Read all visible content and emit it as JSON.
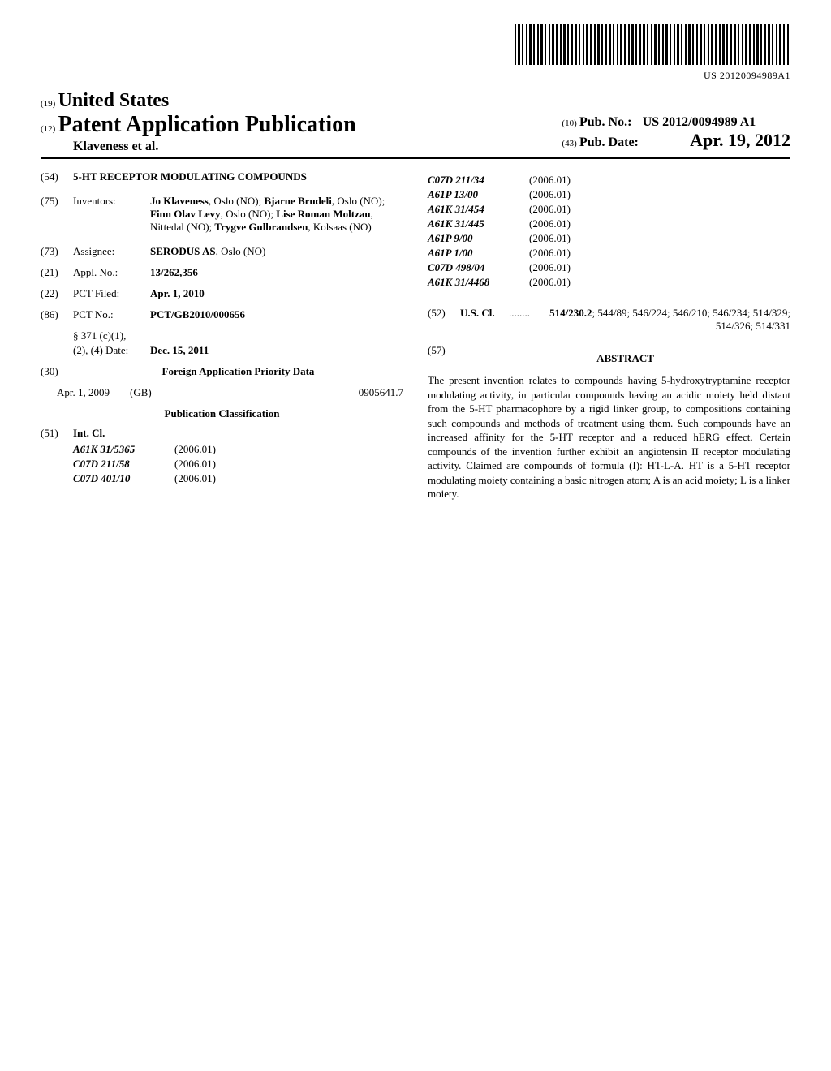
{
  "barcode_text": "US 20120094989A1",
  "country_code": "(19)",
  "country": "United States",
  "pub_code": "(12)",
  "pub_title": "Patent Application Publication",
  "authors": "Klaveness et al.",
  "pub_no_code": "(10)",
  "pub_no_label": "Pub. No.:",
  "pub_no_value": "US 2012/0094989 A1",
  "pub_date_code": "(43)",
  "pub_date_label": "Pub. Date:",
  "pub_date_value": "Apr. 19, 2012",
  "fields": {
    "title": {
      "num": "(54)",
      "value": "5-HT RECEPTOR MODULATING COMPOUNDS"
    },
    "inventors": {
      "num": "(75)",
      "label": "Inventors:",
      "segments": [
        {
          "bold": "Jo Klaveness",
          "plain": ", Oslo (NO); "
        },
        {
          "bold": "Bjarne Brudeli",
          "plain": ", Oslo (NO); "
        },
        {
          "bold": "Finn Olav Levy",
          "plain": ", Oslo (NO); "
        },
        {
          "bold": "Lise Roman Moltzau",
          "plain": ", Nittedal (NO); "
        },
        {
          "bold": "Trygve Gulbrandsen",
          "plain": ", Kolsaas (NO)"
        }
      ]
    },
    "assignee": {
      "num": "(73)",
      "label": "Assignee:",
      "bold": "SERODUS AS",
      "plain": ", Oslo (NO)"
    },
    "appl_no": {
      "num": "(21)",
      "label": "Appl. No.:",
      "value": "13/262,356"
    },
    "pct_filed": {
      "num": "(22)",
      "label": "PCT Filed:",
      "value": "Apr. 1, 2010"
    },
    "pct_no": {
      "num": "(86)",
      "label": "PCT No.:",
      "value": "PCT/GB2010/000656"
    },
    "s371": {
      "label1": "§ 371 (c)(1),",
      "label2": "(2), (4) Date:",
      "value": "Dec. 15, 2011"
    },
    "foreign": {
      "num": "(30)",
      "heading": "Foreign Application Priority Data",
      "date": "Apr. 1, 2009",
      "country": "(GB)",
      "appno": "0905641.7"
    },
    "pub_class_heading": "Publication Classification",
    "int_cl": {
      "num": "(51)",
      "label": "Int. Cl.",
      "items": [
        {
          "code": "A61K 31/5365",
          "year": "(2006.01)"
        },
        {
          "code": "C07D 211/58",
          "year": "(2006.01)"
        },
        {
          "code": "C07D 401/10",
          "year": "(2006.01)"
        },
        {
          "code": "C07D 211/34",
          "year": "(2006.01)"
        },
        {
          "code": "A61P 13/00",
          "year": "(2006.01)"
        },
        {
          "code": "A61K 31/454",
          "year": "(2006.01)"
        },
        {
          "code": "A61K 31/445",
          "year": "(2006.01)"
        },
        {
          "code": "A61P 9/00",
          "year": "(2006.01)"
        },
        {
          "code": "A61P 1/00",
          "year": "(2006.01)"
        },
        {
          "code": "C07D 498/04",
          "year": "(2006.01)"
        },
        {
          "code": "A61K 31/4468",
          "year": "(2006.01)"
        }
      ]
    },
    "us_cl": {
      "num": "(52)",
      "label": "U.S. Cl.",
      "dots": "........",
      "value_bold": "514/230.2",
      "value_rest": "; 544/89; 546/224; 546/210; 546/234; 514/329; 514/326; 514/331"
    },
    "abstract": {
      "num": "(57)",
      "heading": "ABSTRACT",
      "text": "The present invention relates to compounds having 5-hydroxytryptamine receptor modulating activity, in particular compounds having an acidic moiety held distant from the 5-HT pharmacophore by a rigid linker group, to compositions containing such compounds and methods of treatment using them. Such compounds have an increased affinity for the 5-HT receptor and a reduced hERG effect. Certain compounds of the invention further exhibit an angiotensin II receptor modulating activity. Claimed are compounds of formula (I): HT-L-A. HT is a 5-HT receptor modulating moiety containing a basic nitrogen atom; A is an acid moiety; L is a linker moiety."
    }
  }
}
